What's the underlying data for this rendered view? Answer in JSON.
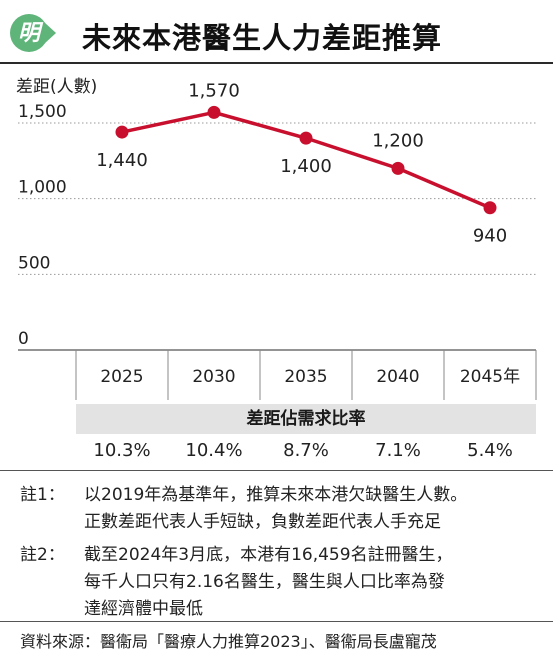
{
  "header": {
    "logo_char": "明",
    "title": "未來本港醫生人力差距推算"
  },
  "chart_data": {
    "type": "line",
    "ylabel": "差距(人數)",
    "categories": [
      "2025",
      "2030",
      "2035",
      "2040",
      "2045年"
    ],
    "x": [
      2025,
      2030,
      2035,
      2040,
      2045
    ],
    "series": [
      {
        "values": [
          1440,
          1570,
          1400,
          1200,
          940
        ]
      }
    ],
    "data_labels": [
      "1,440",
      "1,570",
      "1,400",
      "1,200",
      "940"
    ],
    "yticks": [
      0,
      500,
      1000,
      1500
    ],
    "ytick_labels": [
      "0",
      "500",
      "1,000",
      "1,500"
    ],
    "ylim": [
      0,
      1600
    ],
    "grid": true,
    "line_color": "#c8102e"
  },
  "ratio": {
    "heading": "差距佔需求比率",
    "values": [
      "10.3%",
      "10.4%",
      "8.7%",
      "7.1%",
      "5.4%"
    ]
  },
  "notes": [
    {
      "key": "註1：",
      "lines": [
        "以2019年為基準年，推算未來本港欠缺醫生人數。",
        "正數差距代表人手短缺，負數差距代表人手充足"
      ]
    },
    {
      "key": "註2：",
      "lines": [
        "截至2024年3月底，本港有16,459名註冊醫生，",
        "每千人口只有2.16名醫生，醫生與人口比率為發",
        "達經濟體中最低"
      ]
    }
  ],
  "source": "資料來源：醫衞局「醫療人力推算2023」、醫衞局長盧寵茂"
}
